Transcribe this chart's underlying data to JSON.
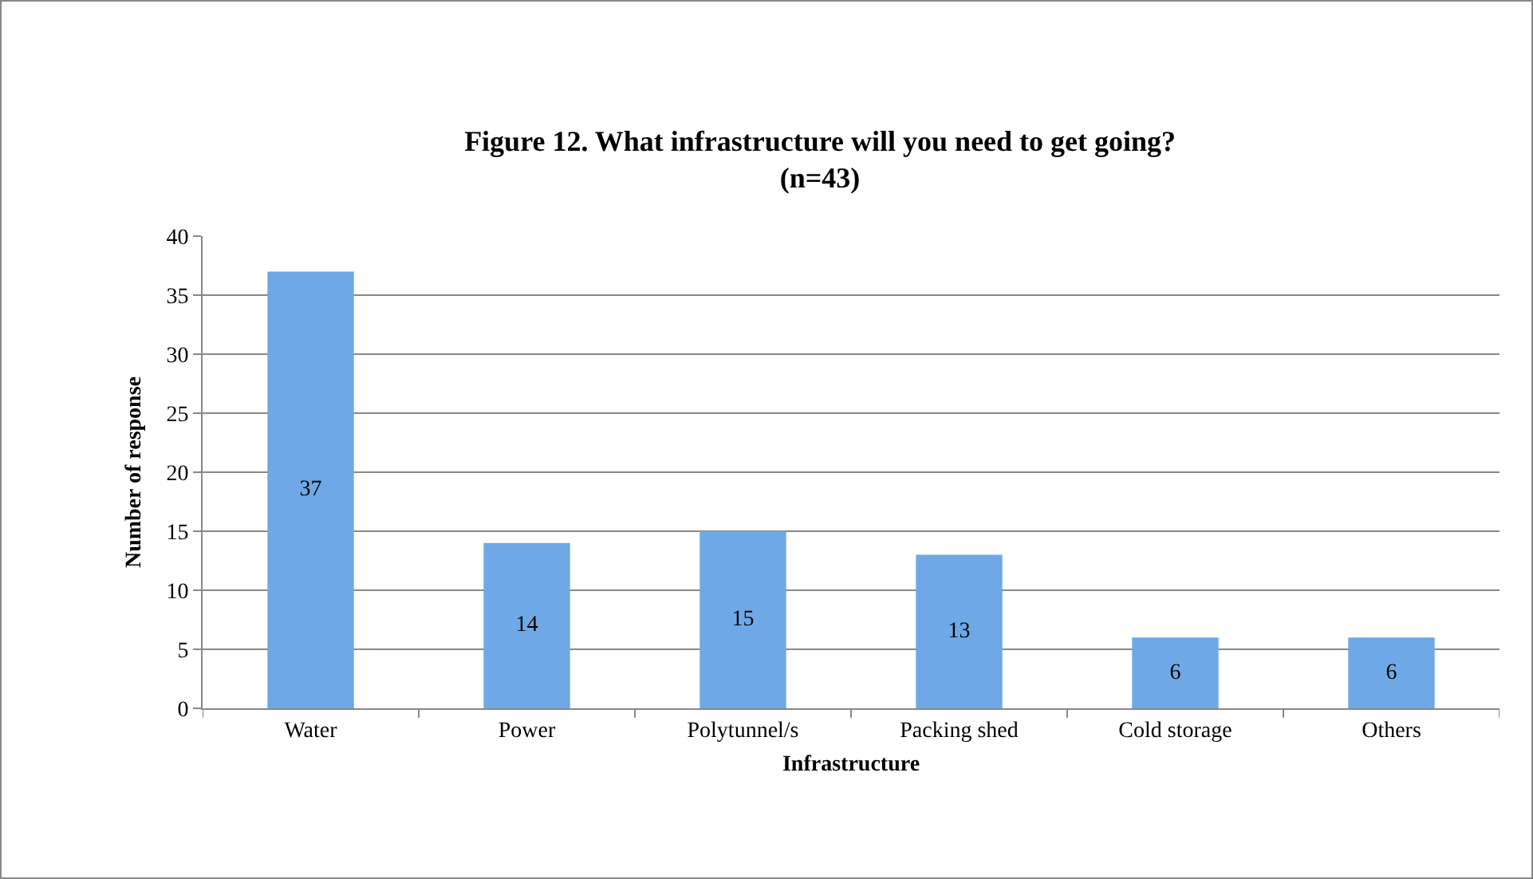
{
  "chart_data": {
    "type": "bar",
    "title": "Figure 12. What infrastructure will you need to get going?\n(n=43)",
    "xlabel": "Infrastructure",
    "ylabel": "Number of response",
    "categories": [
      "Water",
      "Power",
      "Polytunnel/s",
      "Packing shed",
      "Cold storage",
      "Others"
    ],
    "values": [
      37,
      14,
      15,
      13,
      6,
      6
    ],
    "color": "#6fa8e6",
    "ylim": [
      0,
      40
    ],
    "yticks": [
      0,
      5,
      10,
      15,
      20,
      25,
      30,
      35,
      40
    ],
    "grid": "y",
    "data_labels": true,
    "legend": false
  }
}
